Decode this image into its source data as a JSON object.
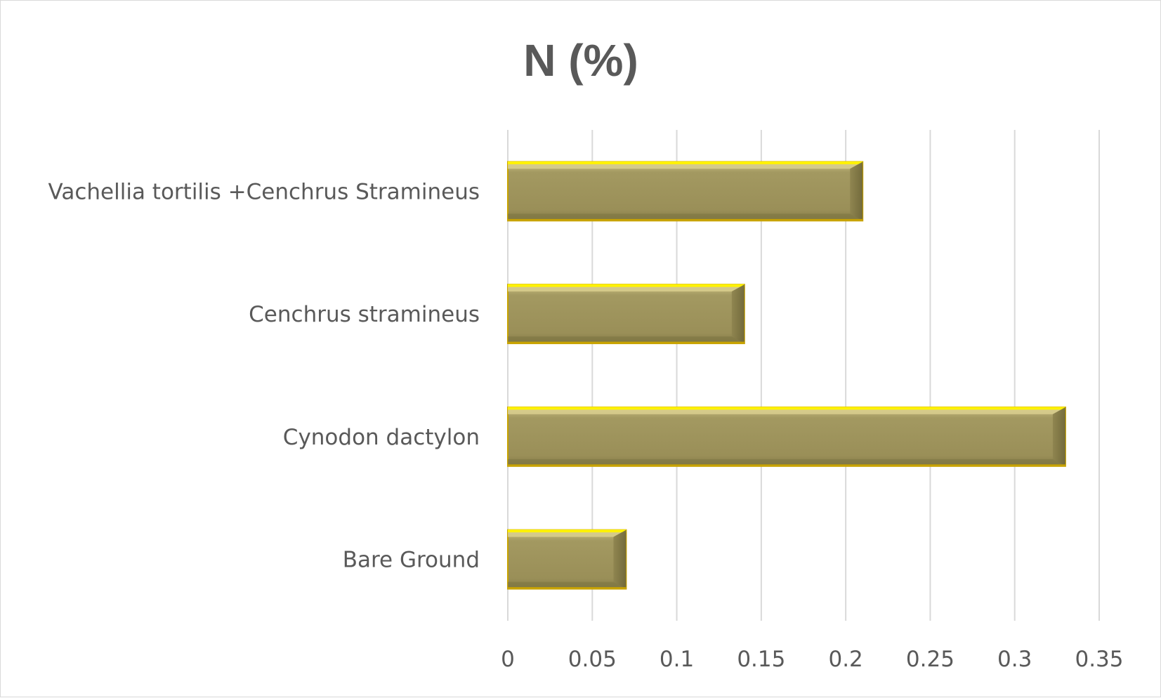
{
  "chart_data": {
    "type": "bar",
    "orientation": "horizontal",
    "title": "N (%)",
    "xlabel": "",
    "ylabel": "",
    "categories": [
      "Vachellia tortilis +Cenchrus Stramineus",
      "Cenchrus stramineus",
      "Cynodon dactylon",
      "Bare Ground"
    ],
    "values": [
      0.21,
      0.14,
      0.33,
      0.07
    ],
    "xlim": [
      0,
      0.35
    ],
    "xticks": [
      "0",
      "0.05",
      "0.1",
      "0.15",
      "0.2",
      "0.25",
      "0.3",
      "0.35"
    ],
    "grid": "vertical",
    "legend": "none",
    "colors": {
      "bar_fill": "#9e935c",
      "bar_highlight": "#fff200",
      "bar_edge": "#c8a300",
      "bar_shadow": "#6e6638",
      "grid": "#d9d9d9",
      "text": "#595959"
    }
  }
}
